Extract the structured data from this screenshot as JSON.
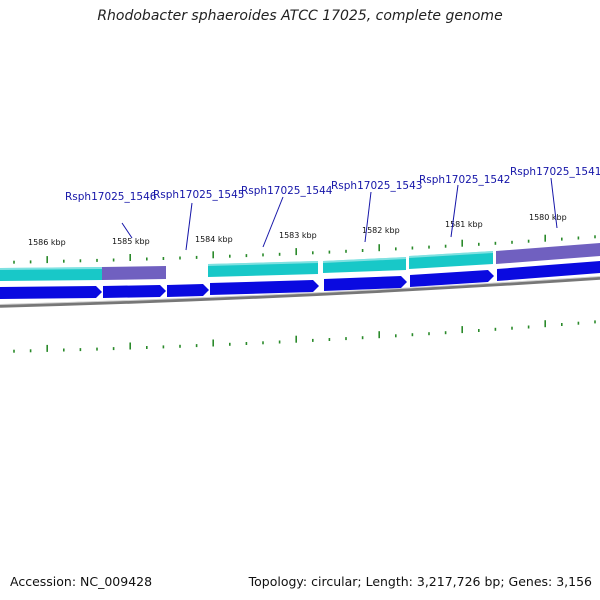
{
  "title": "Rhodobacter sphaeroides ATCC 17025, complete genome",
  "accession": "Accession: NC_009428",
  "summary": "Topology: circular; Length: 3,217,726 bp; Genes: 3,156",
  "colors": {
    "cds_cyan": "#18c8c8",
    "cds_purple": "#7060c0",
    "cds_blue": "#0a0ae0",
    "tick_green": "#2a8a2a",
    "backbone": "#888888",
    "label_blue": "#1515a8"
  },
  "position_labels": [
    "1586 kbp",
    "1585 kbp",
    "1584 kbp",
    "1583 kbp",
    "1582 kbp",
    "1581 kbp",
    "1580 kbp"
  ],
  "gene_labels": [
    "Rsph17025_1546",
    "Rsph17025_1545",
    "Rsph17025_1544",
    "Rsph17025_1543",
    "Rsph17025_1542",
    "Rsph17025_1541"
  ]
}
